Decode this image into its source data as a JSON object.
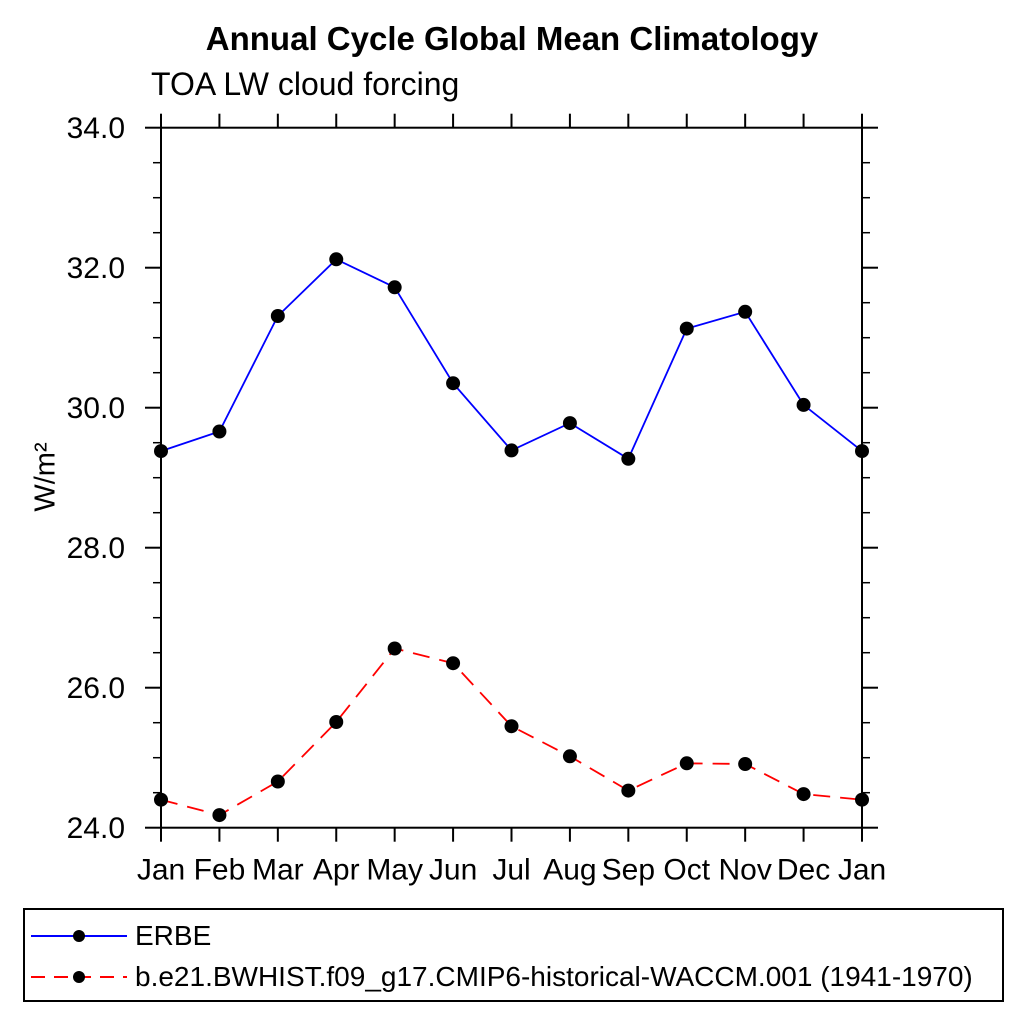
{
  "chart_data": {
    "type": "line",
    "title": "Annual Cycle Global Mean Climatology",
    "subtitle": "TOA LW cloud forcing",
    "ylabel": "W/m²",
    "categories": [
      "Jan",
      "Feb",
      "Mar",
      "Apr",
      "May",
      "Jun",
      "Jul",
      "Aug",
      "Sep",
      "Oct",
      "Nov",
      "Dec",
      "Jan"
    ],
    "ylim": [
      24.0,
      34.0
    ],
    "ytick_step": 2.0,
    "ytick_minor_step": 0.5,
    "ytick_labels": [
      "24.0",
      "26.0",
      "28.0",
      "30.0",
      "32.0",
      "34.0"
    ],
    "grid": false,
    "legend_position": "bottom",
    "axis_color": "#000000",
    "background_color": "#ffffff",
    "series": [
      {
        "name": "ERBE",
        "line_color": "#0000ff",
        "line_style": "solid",
        "marker": "filled-circle",
        "marker_color": "#000000",
        "values": [
          29.38,
          29.66,
          31.31,
          32.12,
          31.72,
          30.35,
          29.39,
          29.78,
          29.27,
          31.13,
          31.37,
          30.04,
          29.38
        ]
      },
      {
        "name": "b.e21.BWHIST.f09_g17.CMIP6-historical-WACCM.001 (1941-1970)",
        "line_color": "#ff0000",
        "line_style": "dashed",
        "marker": "filled-circle",
        "marker_color": "#000000",
        "values": [
          24.4,
          24.18,
          24.66,
          25.51,
          26.56,
          26.35,
          25.45,
          25.02,
          24.53,
          24.92,
          24.91,
          24.48,
          24.4
        ]
      }
    ]
  }
}
